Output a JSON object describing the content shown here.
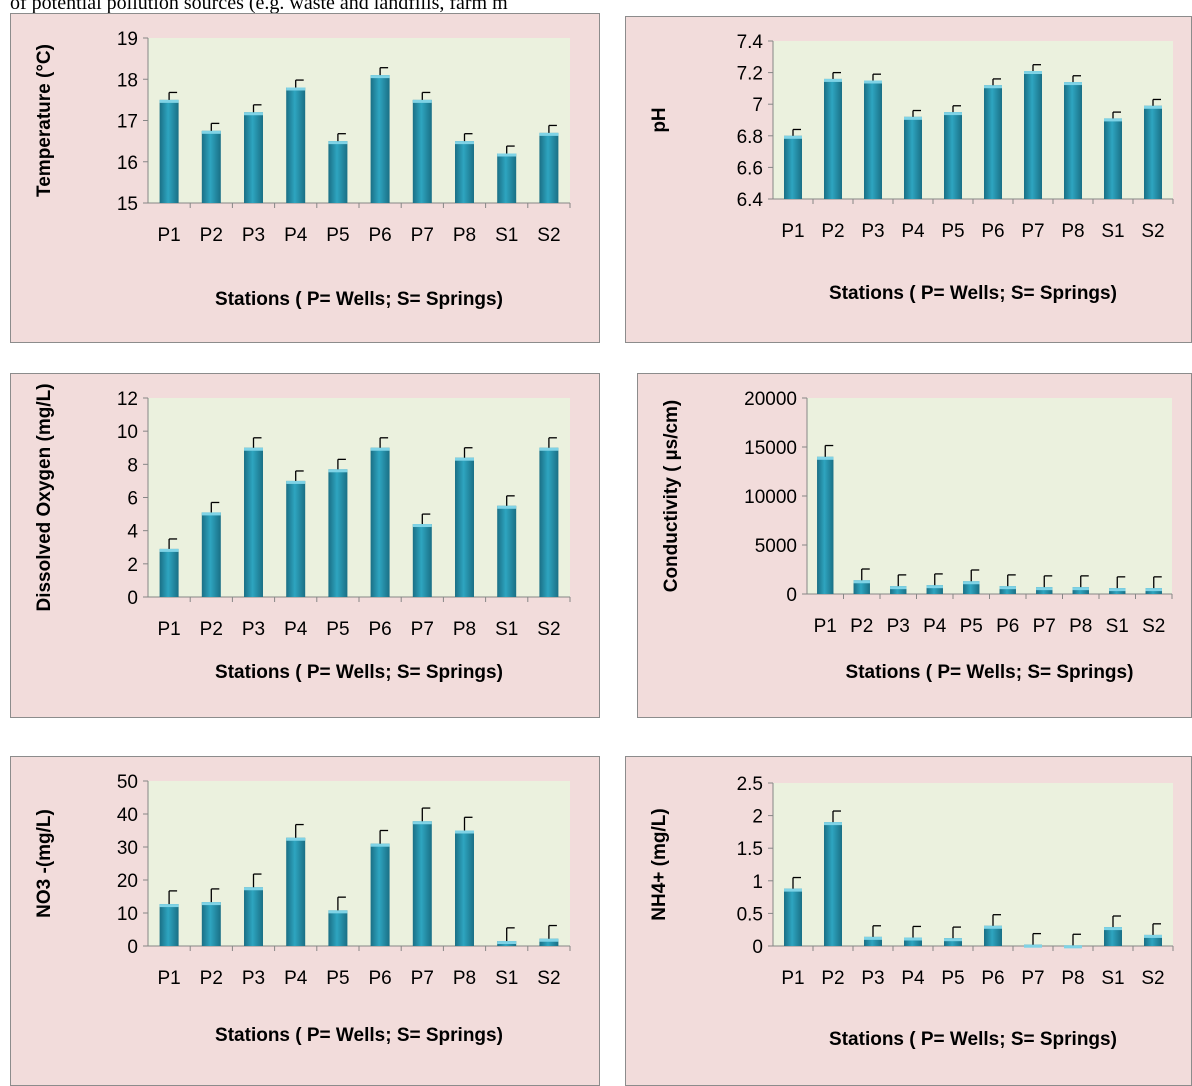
{
  "header_text": "of potential pollution sources (e.g. waste and landfills, farm m",
  "colors": {
    "panel_bg": "#f2dcdb",
    "panel_border": "#8c8c8c",
    "plot_bg": "#ebf1de",
    "bar": "#2ea5c0",
    "bar_dark": "#1a6f85",
    "axis": "#868686"
  },
  "chart_data": [
    {
      "type": "bar",
      "categories": [
        "P1",
        "P2",
        "P3",
        "P4",
        "P5",
        "P6",
        "P7",
        "P8",
        "S1",
        "S2"
      ],
      "values": [
        17.5,
        16.75,
        17.2,
        17.8,
        16.5,
        18.1,
        17.5,
        16.5,
        16.2,
        16.7
      ],
      "errors": [
        0.18,
        0.18,
        0.18,
        0.18,
        0.18,
        0.18,
        0.18,
        0.18,
        0.18,
        0.18
      ],
      "ylim": [
        15,
        19
      ],
      "yticks": [
        "15",
        "16",
        "17",
        "18",
        "19"
      ],
      "ylabel": "Temperature (°C)",
      "xlabel": "Stations ( P= Wells; S= Springs)",
      "grid": false
    },
    {
      "type": "bar",
      "categories": [
        "P1",
        "P2",
        "P3",
        "P4",
        "P5",
        "P6",
        "P7",
        "P8",
        "S1",
        "S2"
      ],
      "values": [
        6.8,
        7.16,
        7.15,
        6.92,
        6.95,
        7.12,
        7.21,
        7.14,
        6.91,
        6.99
      ],
      "errors": [
        0.04,
        0.04,
        0.04,
        0.04,
        0.04,
        0.04,
        0.04,
        0.04,
        0.04,
        0.04
      ],
      "ylim": [
        6.4,
        7.4
      ],
      "yticks": [
        "6.4",
        "6.6",
        "6.8",
        "7",
        "7.2",
        "7.4"
      ],
      "ylabel": "pH",
      "xlabel": "Stations ( P= Wells; S= Springs)",
      "grid": false
    },
    {
      "type": "bar",
      "categories": [
        "P1",
        "P2",
        "P3",
        "P4",
        "P5",
        "P6",
        "P7",
        "P8",
        "S1",
        "S2"
      ],
      "values": [
        2.9,
        5.1,
        9.0,
        7.0,
        7.7,
        9.0,
        4.4,
        8.4,
        5.5,
        9.0
      ],
      "errors": [
        0.6,
        0.6,
        0.6,
        0.6,
        0.6,
        0.6,
        0.6,
        0.6,
        0.6,
        0.6
      ],
      "ylim": [
        0,
        12
      ],
      "yticks": [
        "0",
        "2",
        "4",
        "6",
        "8",
        "10",
        "12"
      ],
      "ylabel": "Dissolved Oxygen (mg/L)",
      "xlabel": "Stations ( P= Wells; S= Springs)",
      "grid": false
    },
    {
      "type": "bar",
      "categories": [
        "P1",
        "P2",
        "P3",
        "P4",
        "P5",
        "P6",
        "P7",
        "P8",
        "S1",
        "S2"
      ],
      "values": [
        14000,
        1400,
        800,
        900,
        1300,
        800,
        700,
        700,
        600,
        600
      ],
      "errors": [
        1150,
        1150,
        1150,
        1150,
        1150,
        1150,
        1150,
        1150,
        1150,
        1150
      ],
      "ylim": [
        0,
        20000
      ],
      "yticks": [
        "0",
        "5000",
        "10000",
        "15000",
        "20000"
      ],
      "ylabel": "Conductivity ( µs/cm)",
      "xlabel": "Stations ( P= Wells; S= Springs)",
      "grid": false
    },
    {
      "type": "bar",
      "categories": [
        "P1",
        "P2",
        "P3",
        "P4",
        "P5",
        "P6",
        "P7",
        "P8",
        "S1",
        "S2"
      ],
      "values": [
        12.7,
        13.3,
        17.8,
        32.8,
        10.8,
        31.0,
        37.8,
        35.0,
        1.5,
        2.2
      ],
      "errors": [
        4,
        4,
        4,
        4,
        4,
        4,
        4,
        4,
        4,
        4
      ],
      "ylim": [
        0,
        50
      ],
      "yticks": [
        "0",
        "10",
        "20",
        "30",
        "40",
        "50"
      ],
      "ylabel": "NO3 -(mg/L)",
      "xlabel": "Stations ( P= Wells; S= Springs)",
      "grid": false
    },
    {
      "type": "bar",
      "categories": [
        "P1",
        "P2",
        "P3",
        "P4",
        "P5",
        "P6",
        "P7",
        "P8",
        "S1",
        "S2"
      ],
      "values": [
        0.88,
        1.9,
        0.14,
        0.13,
        0.12,
        0.31,
        0.02,
        0.01,
        0.29,
        0.17
      ],
      "errors": [
        0.17,
        0.17,
        0.17,
        0.17,
        0.17,
        0.17,
        0.17,
        0.17,
        0.17,
        0.17
      ],
      "ylim": [
        0,
        2.5
      ],
      "yticks": [
        "0",
        "0.5",
        "1",
        "1.5",
        "2",
        "2.5"
      ],
      "ylabel": "NH4+ (mg/L)",
      "xlabel": "Stations ( P= Wells; S= Springs)",
      "grid": false
    }
  ]
}
